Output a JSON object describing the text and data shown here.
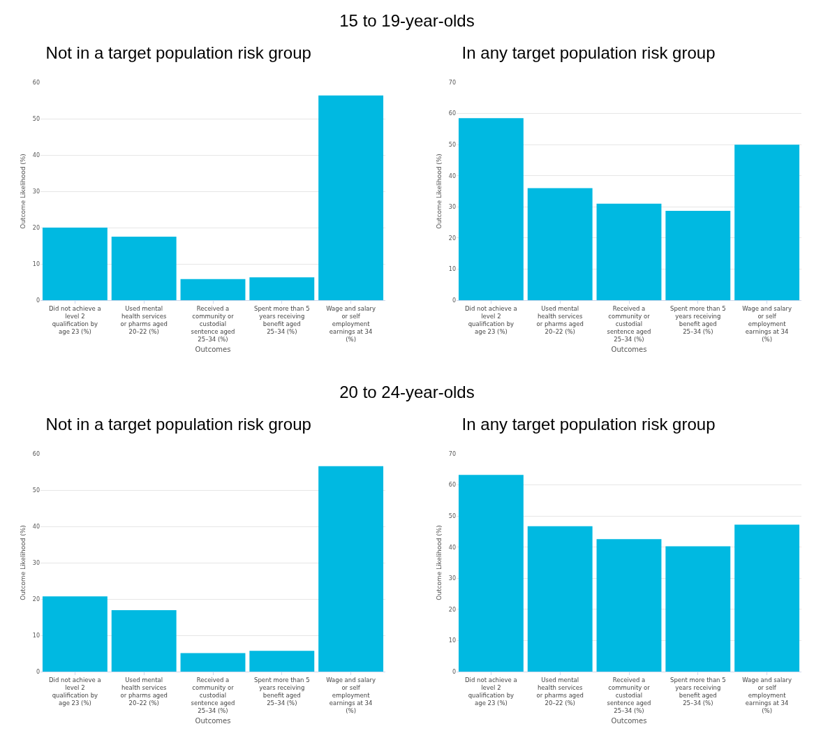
{
  "chart_data": [
    {
      "type": "bar",
      "title": "Not in a target population risk group",
      "annotations": [
        "15 to 19-year-olds"
      ],
      "xlabel": "Outcomes",
      "ylabel": "Outcome Likelihood (%)",
      "categories": [
        "Did not achieve a level 2 qualification by age 23 (%)",
        "Used mental health services or pharms aged 20–22 (%)",
        "Received a community or custodial sentence aged 25–34 (%)",
        "Spent more than 5 years receiving benefit aged 25–34 (%)",
        "Wage and salary or self employment earnings at 34 (%)"
      ],
      "values": [
        20.0,
        17.5,
        5.8,
        6.3,
        56.4
      ],
      "color": "#00b9e1",
      "ylim": [
        0,
        60
      ],
      "yticks": [
        0,
        10,
        20,
        30,
        40,
        50,
        60
      ],
      "grid": "y"
    },
    {
      "type": "bar",
      "title": "In any target population risk group",
      "xlabel": "Outcomes",
      "ylabel": "Outcome Likelihood (%)",
      "categories": [
        "Did not achieve a level 2 qualification by age 23 (%)",
        "Used mental health services or pharms aged 20–22 (%)",
        "Received a community or custodial sentence aged 25–34 (%)",
        "Spent more than 5 years receiving benefit aged 25–34 (%)",
        "Wage and salary or self employment earnings at 34 (%)"
      ],
      "values": [
        58.5,
        36.0,
        31.0,
        28.7,
        50.0
      ],
      "color": "#00b9e1",
      "ylim": [
        0,
        70
      ],
      "yticks": [
        0,
        10,
        20,
        30,
        40,
        50,
        60,
        70
      ],
      "grid": "y"
    },
    {
      "type": "bar",
      "title": "Not in a target population risk group",
      "annotations": [
        "20 to 24-year-olds"
      ],
      "xlabel": "Outcomes",
      "ylabel": "Outcome Likelihood (%)",
      "categories": [
        "Did not achieve a level 2 qualification by age 23 (%)",
        "Used mental health services or pharms aged 20–22 (%)",
        "Received a community or custodial sentence aged 25–34 (%)",
        "Spent more than 5 years receiving benefit aged 25–34 (%)",
        "Wage and salary or self employment earnings at 34 (%)"
      ],
      "values": [
        20.7,
        16.9,
        5.1,
        5.7,
        56.6
      ],
      "color": "#00b9e1",
      "ylim": [
        0,
        60
      ],
      "yticks": [
        0,
        10,
        20,
        30,
        40,
        50,
        60
      ],
      "grid": "y"
    },
    {
      "type": "bar",
      "title": "In any target population risk group",
      "xlabel": "Outcomes",
      "ylabel": "Outcome Likelihood (%)",
      "categories": [
        "Did not achieve a level 2 qualification by age 23 (%)",
        "Used mental health services or pharms aged 20–22 (%)",
        "Received a community or custodial sentence aged 25–34 (%)",
        "Spent more than 5 years receiving benefit aged 25–34 (%)",
        "Wage and salary or self employment earnings at 34 (%)"
      ],
      "values": [
        63.2,
        46.7,
        42.6,
        40.3,
        47.2
      ],
      "color": "#00b9e1",
      "ylim": [
        0,
        70
      ],
      "yticks": [
        0,
        10,
        20,
        30,
        40,
        50,
        60,
        70
      ],
      "grid": "y"
    }
  ]
}
